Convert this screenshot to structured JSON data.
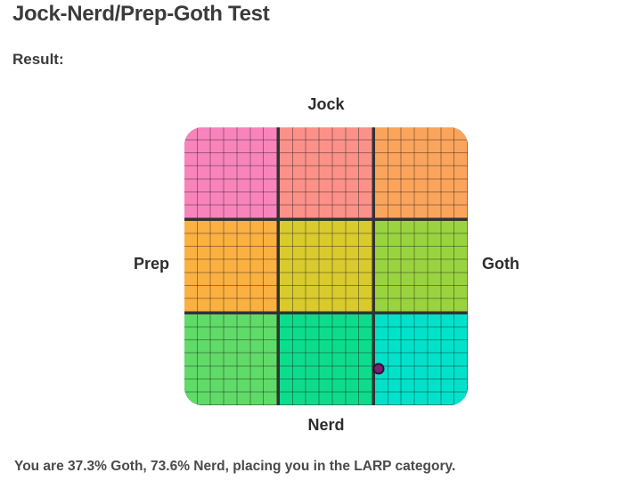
{
  "page": {
    "title": "Jock-Nerd/Prep-Goth Test",
    "result_label": "Result:",
    "result_text": "You are 37.3% Goth, 73.6% Nerd, placing you in the LARP category."
  },
  "chart_data": {
    "type": "scatter",
    "title": "Jock-Nerd/Prep-Goth alignment grid",
    "axis_labels": {
      "top": "Jock",
      "bottom": "Nerd",
      "left": "Prep",
      "right": "Goth"
    },
    "x_axis": {
      "left_pole": "Prep",
      "right_pole": "Goth",
      "range_pct": [
        -100,
        100
      ]
    },
    "y_axis": {
      "top_pole": "Jock",
      "bottom_pole": "Nerd",
      "range_pct": [
        -100,
        100
      ]
    },
    "points": [
      {
        "name": "result-point",
        "goth_pct": 37.3,
        "nerd_pct": 73.6,
        "category": "LARP",
        "fill": "#7b2172",
        "stroke": "#331132"
      }
    ],
    "grid": {
      "macro_rows": 3,
      "macro_cols": 3,
      "minor_cells_per_macro": 7,
      "cell_colors": [
        "#f884bb",
        "#fb9188",
        "#fba45c",
        "#fbb042",
        "#d9ca2e",
        "#9ad340",
        "#60da68",
        "#0edc8d",
        "#02e2ca"
      ],
      "thick_line_color": "#333333",
      "thin_line_color": "rgba(20,20,20,0.4)",
      "legend": false,
      "corner_rounded": true
    }
  }
}
